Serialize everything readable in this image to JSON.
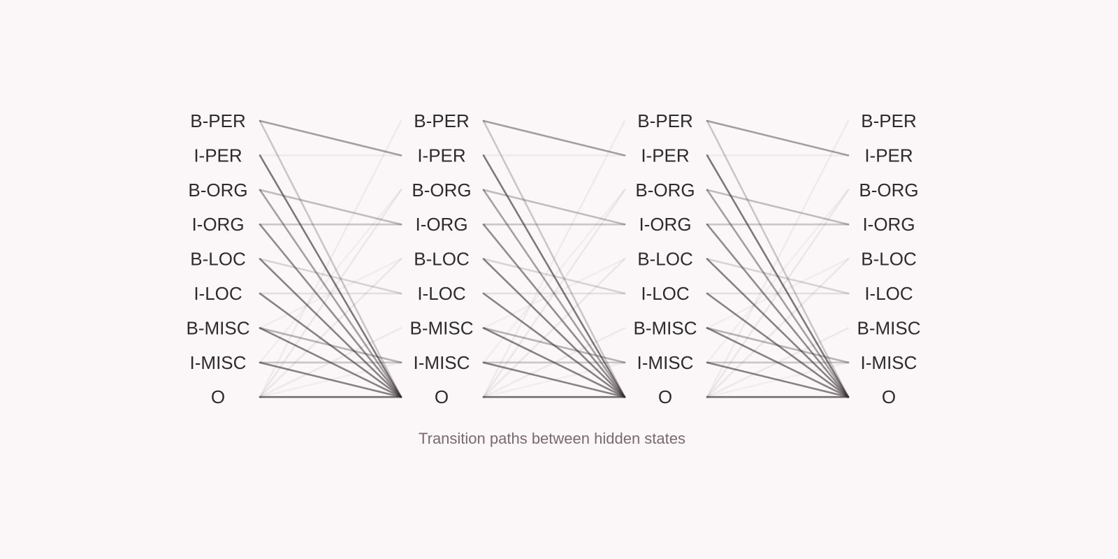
{
  "caption": "Transition paths between hidden states",
  "states": [
    "B-PER",
    "I-PER",
    "B-ORG",
    "I-ORG",
    "B-LOC",
    "I-LOC",
    "B-MISC",
    "I-MISC",
    "O"
  ],
  "num_columns": 4,
  "colors": {
    "background": "#fbf6f7",
    "label": "#2e2a2c",
    "caption": "#7a6a70",
    "edge": "#3a3336"
  },
  "transitions": [
    {
      "from": "B-PER",
      "to": "I-PER",
      "weight": 0.45
    },
    {
      "from": "B-PER",
      "to": "O",
      "weight": 0.25
    },
    {
      "from": "I-PER",
      "to": "I-PER",
      "weight": 0.06
    },
    {
      "from": "I-PER",
      "to": "O",
      "weight": 0.65
    },
    {
      "from": "B-ORG",
      "to": "I-ORG",
      "weight": 0.3
    },
    {
      "from": "B-ORG",
      "to": "O",
      "weight": 0.45
    },
    {
      "from": "I-ORG",
      "to": "I-ORG",
      "weight": 0.25
    },
    {
      "from": "I-ORG",
      "to": "O",
      "weight": 0.55
    },
    {
      "from": "B-LOC",
      "to": "I-LOC",
      "weight": 0.18
    },
    {
      "from": "B-LOC",
      "to": "O",
      "weight": 0.6
    },
    {
      "from": "I-LOC",
      "to": "I-LOC",
      "weight": 0.12
    },
    {
      "from": "I-LOC",
      "to": "O",
      "weight": 0.6
    },
    {
      "from": "B-MISC",
      "to": "I-MISC",
      "weight": 0.35
    },
    {
      "from": "B-MISC",
      "to": "O",
      "weight": 0.6
    },
    {
      "from": "I-MISC",
      "to": "I-MISC",
      "weight": 0.25
    },
    {
      "from": "I-MISC",
      "to": "O",
      "weight": 0.6
    },
    {
      "from": "O",
      "to": "O",
      "weight": 0.7
    },
    {
      "from": "O",
      "to": "B-PER",
      "weight": 0.06
    },
    {
      "from": "O",
      "to": "B-ORG",
      "weight": 0.08
    },
    {
      "from": "O",
      "to": "B-LOC",
      "weight": 0.08
    },
    {
      "from": "O",
      "to": "B-MISC",
      "weight": 0.07
    },
    {
      "from": "O",
      "to": "I-MISC",
      "weight": 0.05
    },
    {
      "from": "I-MISC",
      "to": "B-ORG",
      "weight": 0.05
    },
    {
      "from": "B-MISC",
      "to": "B-LOC",
      "weight": 0.04
    }
  ]
}
